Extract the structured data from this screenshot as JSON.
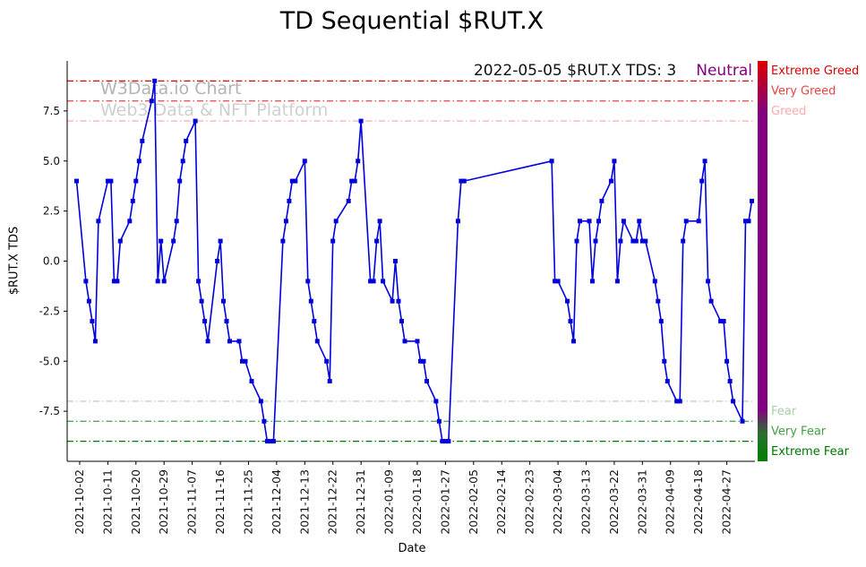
{
  "chart_data": {
    "type": "line",
    "title": "TD Sequential $RUT.X",
    "xlabel": "Date",
    "ylabel": "$RUT.X TDS",
    "ylim": [
      -10,
      10
    ],
    "x_domain": [
      "2021-09-28",
      "2022-05-06"
    ],
    "yticks": [
      "7.5",
      "5.0",
      "2.5",
      "0.0",
      "-2.5",
      "-5.0",
      "-7.5"
    ],
    "xticks": [
      "2021-10-02",
      "2021-10-11",
      "2021-10-20",
      "2021-10-29",
      "2021-11-07",
      "2021-11-16",
      "2021-11-25",
      "2021-12-04",
      "2021-12-13",
      "2021-12-22",
      "2021-12-31",
      "2022-01-09",
      "2022-01-18",
      "2022-01-27",
      "2022-02-05",
      "2022-02-14",
      "2022-02-23",
      "2022-03-04",
      "2022-03-13",
      "2022-03-22",
      "2022-03-31",
      "2022-04-09",
      "2022-04-18",
      "2022-04-27"
    ],
    "annotation": {
      "text": "2022-05-05 $RUT.X TDS: 3",
      "status": "Neutral",
      "status_color": "#800080"
    },
    "watermark": {
      "line1": "W3Data.io Chart",
      "line2": "Web3 Data & NFT Platform"
    },
    "thresholds": [
      {
        "value": 9,
        "label": "Extreme Greed",
        "line_color": "#dd0000",
        "label_color": "#dd0000"
      },
      {
        "value": 8,
        "label": "Very Greed",
        "line_color": "#ee5555",
        "label_color": "#ee4444"
      },
      {
        "value": 7,
        "label": "Greed",
        "line_color": "#ffb0b0",
        "label_color": "#ffaaaa"
      },
      {
        "value": -7,
        "label": "Fear",
        "line_color": "#b8d8b8",
        "label_color": "#aaccaa"
      },
      {
        "value": -8,
        "label": "Very Fear",
        "line_color": "#55aa55",
        "label_color": "#44a044"
      },
      {
        "value": -9,
        "label": "Extreme Fear",
        "line_color": "#007700",
        "label_color": "#007700"
      }
    ],
    "gauge_stops": [
      {
        "offset": "0%",
        "color": "#dd0000"
      },
      {
        "offset": "7%",
        "color": "#aa0040"
      },
      {
        "offset": "13%",
        "color": "#800080"
      },
      {
        "offset": "87%",
        "color": "#800080"
      },
      {
        "offset": "93%",
        "color": "#2a7030"
      },
      {
        "offset": "100%",
        "color": "#008000"
      }
    ],
    "series": [
      {
        "name": "$RUT.X TDS",
        "color": "#0000dd",
        "marker": "square",
        "points": [
          [
            "2021-10-01",
            4
          ],
          [
            "2021-10-04",
            -1
          ],
          [
            "2021-10-05",
            -2
          ],
          [
            "2021-10-06",
            -3
          ],
          [
            "2021-10-07",
            -4
          ],
          [
            "2021-10-08",
            2
          ],
          [
            "2021-10-11",
            4
          ],
          [
            "2021-10-12",
            4
          ],
          [
            "2021-10-13",
            -1
          ],
          [
            "2021-10-14",
            -1
          ],
          [
            "2021-10-15",
            1
          ],
          [
            "2021-10-18",
            2
          ],
          [
            "2021-10-19",
            3
          ],
          [
            "2021-10-20",
            4
          ],
          [
            "2021-10-21",
            5
          ],
          [
            "2021-10-22",
            6
          ],
          [
            "2021-10-25",
            8
          ],
          [
            "2021-10-26",
            9
          ],
          [
            "2021-10-27",
            -1
          ],
          [
            "2021-10-28",
            1
          ],
          [
            "2021-10-29",
            -1
          ],
          [
            "2021-11-01",
            1
          ],
          [
            "2021-11-02",
            2
          ],
          [
            "2021-11-03",
            4
          ],
          [
            "2021-11-04",
            5
          ],
          [
            "2021-11-05",
            6
          ],
          [
            "2021-11-08",
            7
          ],
          [
            "2021-11-09",
            -1
          ],
          [
            "2021-11-10",
            -2
          ],
          [
            "2021-11-11",
            -3
          ],
          [
            "2021-11-12",
            -4
          ],
          [
            "2021-11-15",
            0
          ],
          [
            "2021-11-16",
            1
          ],
          [
            "2021-11-17",
            -2
          ],
          [
            "2021-11-18",
            -3
          ],
          [
            "2021-11-19",
            -4
          ],
          [
            "2021-11-22",
            -4
          ],
          [
            "2021-11-23",
            -5
          ],
          [
            "2021-11-24",
            -5
          ],
          [
            "2021-11-26",
            -6
          ],
          [
            "2021-11-29",
            -7
          ],
          [
            "2021-11-30",
            -8
          ],
          [
            "2021-12-01",
            -9
          ],
          [
            "2021-12-02",
            -9
          ],
          [
            "2021-12-03",
            -9
          ],
          [
            "2021-12-06",
            1
          ],
          [
            "2021-12-07",
            2
          ],
          [
            "2021-12-08",
            3
          ],
          [
            "2021-12-09",
            4
          ],
          [
            "2021-12-10",
            4
          ],
          [
            "2021-12-13",
            5
          ],
          [
            "2021-12-14",
            -1
          ],
          [
            "2021-12-15",
            -2
          ],
          [
            "2021-12-16",
            -3
          ],
          [
            "2021-12-17",
            -4
          ],
          [
            "2021-12-20",
            -5
          ],
          [
            "2021-12-21",
            -6
          ],
          [
            "2021-12-22",
            1
          ],
          [
            "2021-12-23",
            2
          ],
          [
            "2021-12-27",
            3
          ],
          [
            "2021-12-28",
            4
          ],
          [
            "2021-12-29",
            4
          ],
          [
            "2021-12-30",
            5
          ],
          [
            "2021-12-31",
            7
          ],
          [
            "2022-01-03",
            -1
          ],
          [
            "2022-01-04",
            -1
          ],
          [
            "2022-01-05",
            1
          ],
          [
            "2022-01-06",
            2
          ],
          [
            "2022-01-07",
            -1
          ],
          [
            "2022-01-10",
            -2
          ],
          [
            "2022-01-11",
            0
          ],
          [
            "2022-01-12",
            -2
          ],
          [
            "2022-01-13",
            -3
          ],
          [
            "2022-01-14",
            -4
          ],
          [
            "2022-01-18",
            -4
          ],
          [
            "2022-01-19",
            -5
          ],
          [
            "2022-01-20",
            -5
          ],
          [
            "2022-01-21",
            -6
          ],
          [
            "2022-01-24",
            -7
          ],
          [
            "2022-01-25",
            -8
          ],
          [
            "2022-01-26",
            -9
          ],
          [
            "2022-01-27",
            -9
          ],
          [
            "2022-01-28",
            -9
          ],
          [
            "2022-01-31",
            2
          ],
          [
            "2022-02-01",
            4
          ],
          [
            "2022-02-02",
            4
          ],
          [
            "2022-03-02",
            5
          ],
          [
            "2022-03-03",
            -1
          ],
          [
            "2022-03-04",
            -1
          ],
          [
            "2022-03-07",
            -2
          ],
          [
            "2022-03-08",
            -3
          ],
          [
            "2022-03-09",
            -4
          ],
          [
            "2022-03-10",
            1
          ],
          [
            "2022-03-11",
            2
          ],
          [
            "2022-03-14",
            2
          ],
          [
            "2022-03-15",
            -1
          ],
          [
            "2022-03-16",
            1
          ],
          [
            "2022-03-17",
            2
          ],
          [
            "2022-03-18",
            3
          ],
          [
            "2022-03-21",
            4
          ],
          [
            "2022-03-22",
            5
          ],
          [
            "2022-03-23",
            -1
          ],
          [
            "2022-03-24",
            1
          ],
          [
            "2022-03-25",
            2
          ],
          [
            "2022-03-28",
            1
          ],
          [
            "2022-03-29",
            1
          ],
          [
            "2022-03-30",
            2
          ],
          [
            "2022-03-31",
            1
          ],
          [
            "2022-04-01",
            1
          ],
          [
            "2022-04-04",
            -1
          ],
          [
            "2022-04-05",
            -2
          ],
          [
            "2022-04-06",
            -3
          ],
          [
            "2022-04-07",
            -5
          ],
          [
            "2022-04-08",
            -6
          ],
          [
            "2022-04-11",
            -7
          ],
          [
            "2022-04-12",
            -7
          ],
          [
            "2022-04-13",
            1
          ],
          [
            "2022-04-14",
            2
          ],
          [
            "2022-04-18",
            2
          ],
          [
            "2022-04-19",
            4
          ],
          [
            "2022-04-20",
            5
          ],
          [
            "2022-04-21",
            -1
          ],
          [
            "2022-04-22",
            -2
          ],
          [
            "2022-04-25",
            -3
          ],
          [
            "2022-04-26",
            -3
          ],
          [
            "2022-04-27",
            -5
          ],
          [
            "2022-04-28",
            -6
          ],
          [
            "2022-04-29",
            -7
          ],
          [
            "2022-05-02",
            -8
          ],
          [
            "2022-05-03",
            2
          ],
          [
            "2022-05-04",
            2
          ],
          [
            "2022-05-05",
            3
          ]
        ]
      }
    ]
  }
}
